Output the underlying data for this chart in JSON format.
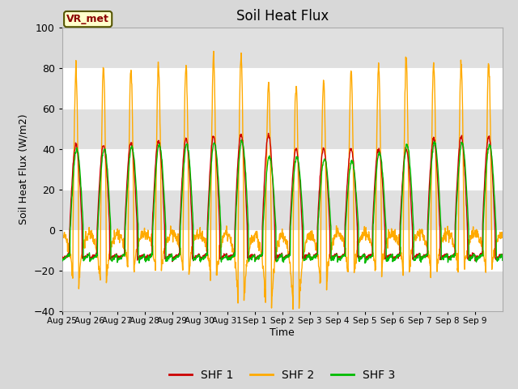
{
  "title": "Soil Heat Flux",
  "xlabel": "Time",
  "ylabel": "Soil Heat Flux (W/m2)",
  "ylim": [
    -40,
    100
  ],
  "yticks": [
    -40,
    -20,
    0,
    20,
    40,
    60,
    80,
    100
  ],
  "n_days": 16,
  "date_labels": [
    "Aug 25",
    "Aug 26",
    "Aug 27",
    "Aug 28",
    "Aug 29",
    "Aug 30",
    "Aug 31",
    "Sep 1",
    "Sep 2",
    "Sep 3",
    "Sep 4",
    "Sep 5",
    "Sep 6",
    "Sep 7",
    "Sep 8",
    "Sep 9"
  ],
  "shf1_color": "#cc0000",
  "shf2_color": "#ffaa00",
  "shf3_color": "#00bb00",
  "shf1_label": "SHF 1",
  "shf2_label": "SHF 2",
  "shf3_label": "SHF 3",
  "vr_label": "VR_met",
  "fig_bg_color": "#d8d8d8",
  "plot_bg_color": "#ffffff",
  "band_color": "#e0e0e0",
  "linewidth": 1.0,
  "legend_fontsize": 10,
  "title_fontsize": 12
}
